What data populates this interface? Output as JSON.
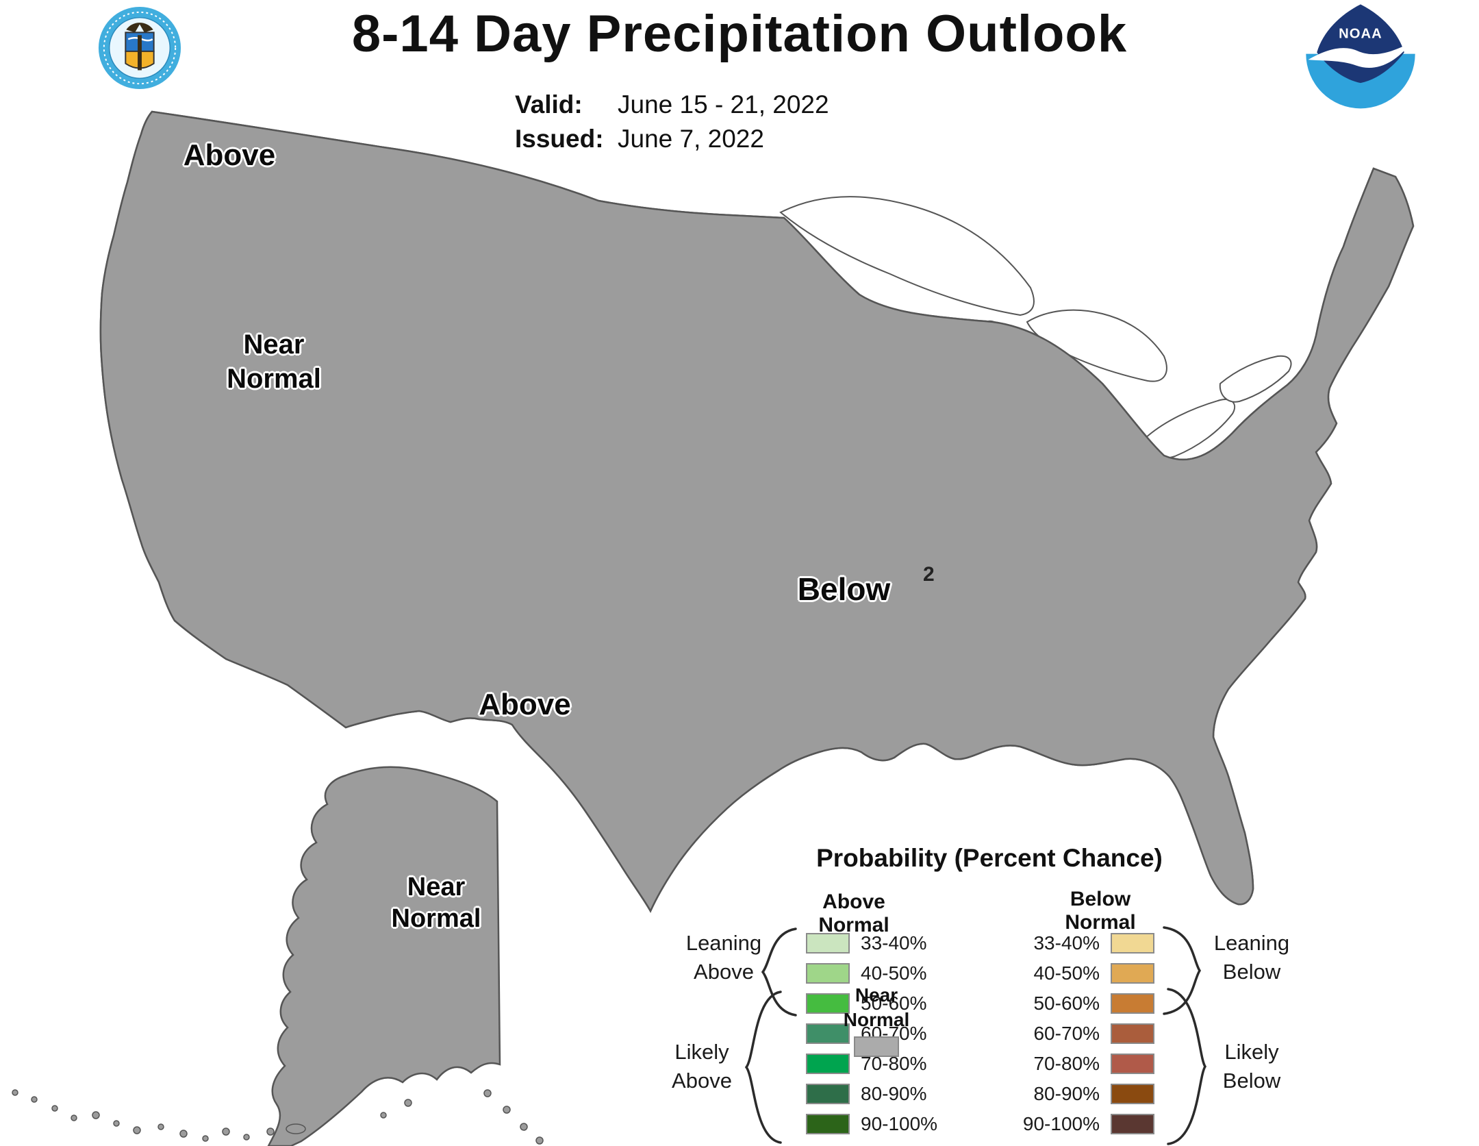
{
  "header": {
    "title": "8-14 Day Precipitation Outlook",
    "valid_label": "Valid:",
    "valid_value": "June 15 - 21, 2022",
    "issued_label": "Issued:",
    "issued_value": "June 7, 2022"
  },
  "logos": {
    "noaa_text": "NOAA"
  },
  "map": {
    "labels": {
      "above_nw": "Above",
      "near_normal_west": "Near Normal",
      "below_center": "Below",
      "above_sw": "Above",
      "near_normal_ak": "Near Normal"
    },
    "contour_annotation": "2"
  },
  "map_colors": {
    "land": "#9c9c9c",
    "outline": "#555555",
    "above_33_40": "#cbe5bf",
    "above_40_50": "#9fd689",
    "below_33_40": "#f1d893",
    "below_40_50": "#e0a954",
    "below_50_60": "#c87c33",
    "lake": "#ffffff"
  },
  "legend": {
    "title": "Probability (Percent Chance)",
    "above_header": "Above Normal",
    "below_header": "Below Normal",
    "near_normal": {
      "label": "Near Normal",
      "color": "#ababab"
    },
    "groups": {
      "leaning_above": "Leaning Above",
      "likely_above": "Likely Above",
      "leaning_below": "Leaning Below",
      "likely_below": "Likely Below"
    },
    "above_rows": [
      {
        "range": "33-40%",
        "color": "#cbe5bf"
      },
      {
        "range": "40-50%",
        "color": "#9fd689"
      },
      {
        "range": "50-60%",
        "color": "#45bc40"
      },
      {
        "range": "60-70%",
        "color": "#3f8f68"
      },
      {
        "range": "70-80%",
        "color": "#00a44f"
      },
      {
        "range": "80-90%",
        "color": "#2e6e49"
      },
      {
        "range": "90-100%",
        "color": "#2c6419"
      }
    ],
    "below_rows": [
      {
        "range": "33-40%",
        "color": "#f1d893"
      },
      {
        "range": "40-50%",
        "color": "#e0a954"
      },
      {
        "range": "50-60%",
        "color": "#c87c33"
      },
      {
        "range": "60-70%",
        "color": "#aa5d3c"
      },
      {
        "range": "70-80%",
        "color": "#b05a49"
      },
      {
        "range": "80-90%",
        "color": "#8a4a10"
      },
      {
        "range": "90-100%",
        "color": "#5a3731"
      }
    ]
  }
}
